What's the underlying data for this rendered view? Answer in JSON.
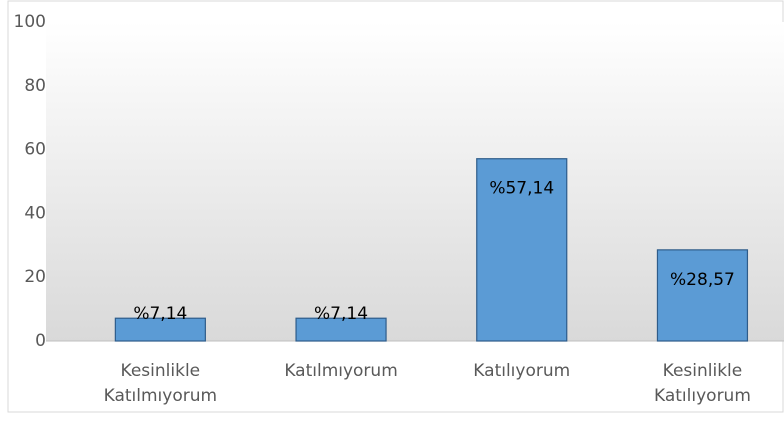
{
  "chart_data": {
    "type": "bar",
    "categories": [
      "Kesinlikle Katılmıyorum",
      "Katılmıyorum",
      "Katılıyorum",
      "Kesinlikle Katılıyorum"
    ],
    "values": [
      7.14,
      7.14,
      57.14,
      28.57
    ],
    "value_labels": [
      "%7,14",
      "%7,14",
      "%57,14",
      "%28,57"
    ],
    "color": "#5b9bd5",
    "ylim": [
      0,
      100
    ],
    "yticks": [
      0,
      20,
      40,
      60,
      80,
      100
    ],
    "grid": false
  }
}
